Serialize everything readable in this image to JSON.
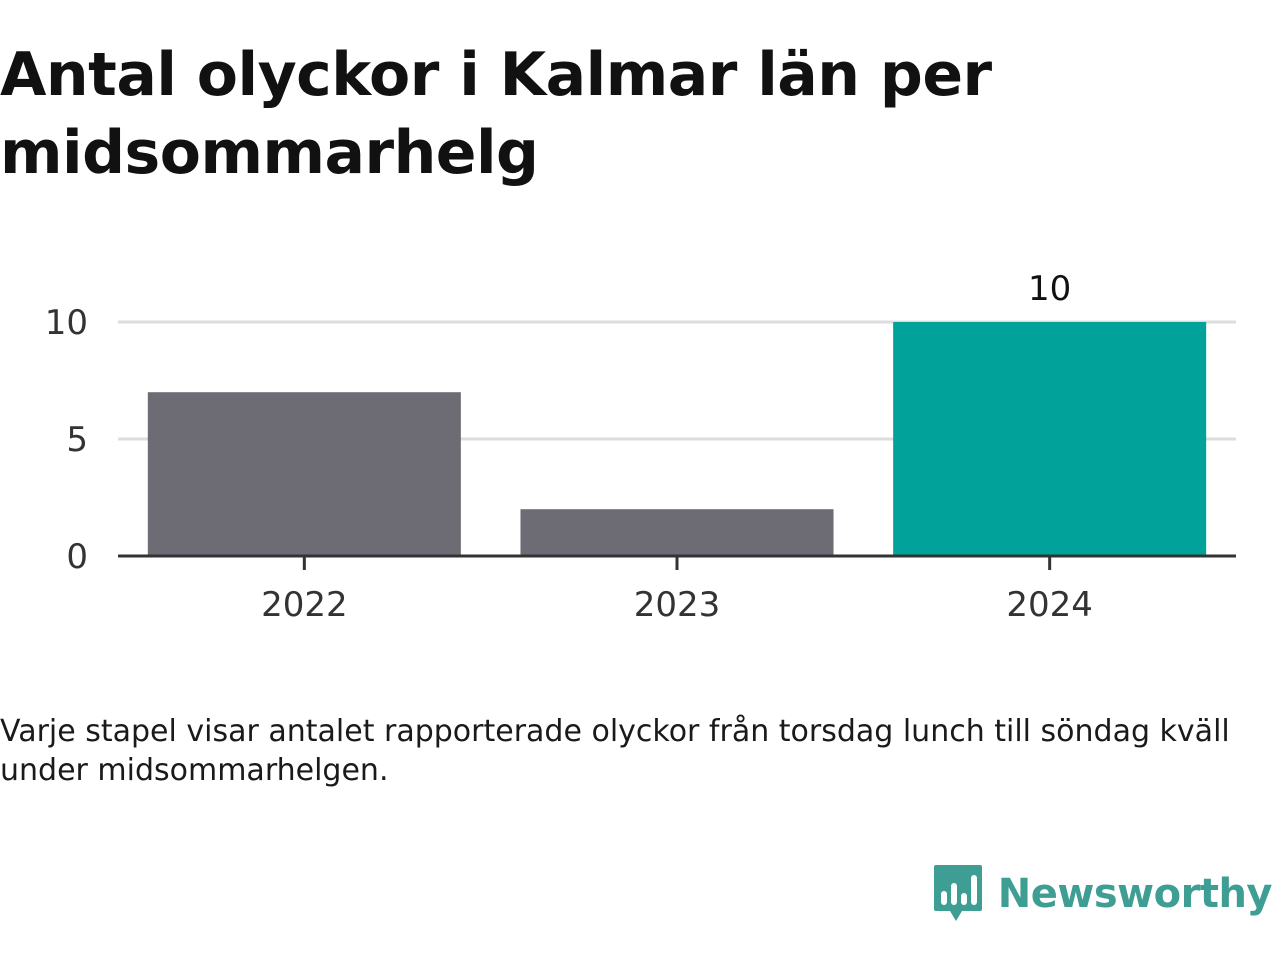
{
  "header": {
    "title": "Antal olyckor i Kalmar län per midsommarhelg"
  },
  "chart_data": {
    "type": "bar",
    "categories": [
      "2022",
      "2023",
      "2024"
    ],
    "values": [
      7,
      2,
      10
    ],
    "data_labels": {
      "2024": "10"
    },
    "highlight_category": "2024",
    "colors": {
      "default": "#6d6c74",
      "highlight": "#00a29a",
      "grid": "#dddddd",
      "axis": "#333333"
    },
    "ylim": [
      0,
      10
    ],
    "yticks": [
      0,
      5,
      10
    ],
    "grid": true,
    "xlabel": "",
    "ylabel": ""
  },
  "footer": {
    "caption": "Varje stapel visar antalet rapporterade olyckor från torsdag lunch till söndag kväll under midsommarhelgen.",
    "brand": "Newsworthy",
    "brand_icon": "newsworthy-logo-icon"
  }
}
